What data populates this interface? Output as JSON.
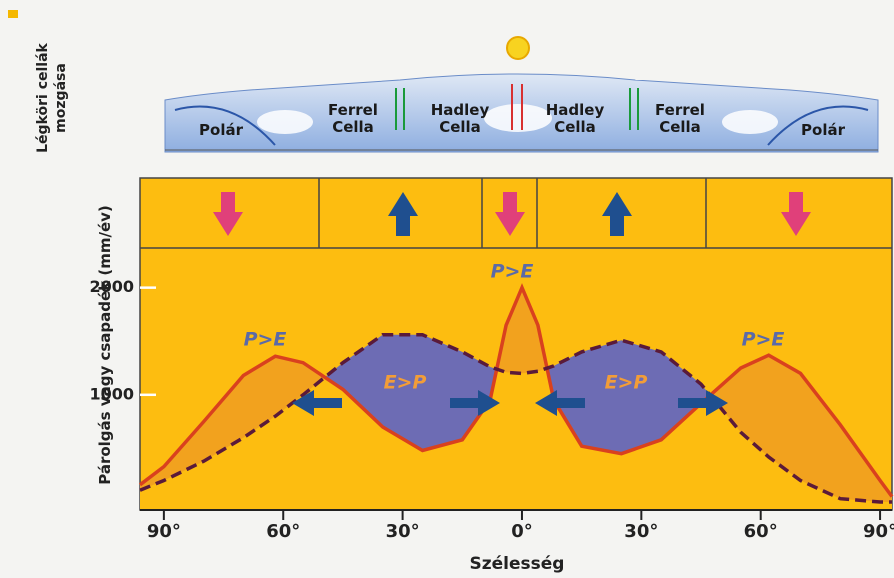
{
  "chart_data": {
    "type": "line",
    "ylabel": "Párolgás vagy csapadék (mm/év)",
    "xlabel": "Szélesség",
    "top_label": "Légköri cellák mozgása",
    "cells": [
      "Polár",
      "Ferrel Cella",
      "Hadley Cella",
      "Hadley Cella",
      "Ferrel Cella",
      "Polár"
    ],
    "annotations": [
      "P>E",
      "P>E",
      "P>E",
      "E>P",
      "E>P"
    ],
    "x": [
      -96,
      -90,
      -80,
      -70,
      -62,
      -55,
      -45,
      -35,
      -25,
      -15,
      -8,
      -4,
      0,
      4,
      8,
      15,
      25,
      35,
      45,
      55,
      62,
      70,
      80,
      90,
      93
    ],
    "series": [
      {
        "color": "#d9411e",
        "style": "solid",
        "values": [
          160,
          330,
          750,
          1180,
          1360,
          1300,
          1050,
          700,
          480,
          580,
          950,
          1650,
          2000,
          1650,
          950,
          520,
          450,
          580,
          920,
          1250,
          1370,
          1200,
          720,
          200,
          50
        ]
      },
      {
        "color": "#5a1a3a",
        "style": "dashed",
        "values": [
          110,
          200,
          380,
          600,
          800,
          1000,
          1300,
          1560,
          1560,
          1400,
          1260,
          1210,
          1200,
          1220,
          1270,
          1400,
          1510,
          1400,
          1100,
          650,
          420,
          200,
          30,
          0,
          0
        ]
      }
    ],
    "xlim": [
      -96,
      93
    ],
    "ylim": [
      -75,
      2370
    ],
    "xticks": [
      {
        "value": -90,
        "label": "90°"
      },
      {
        "value": -60,
        "label": "60°"
      },
      {
        "value": -30,
        "label": "30°"
      },
      {
        "value": 0,
        "label": "0°"
      },
      {
        "value": 30,
        "label": "30°"
      },
      {
        "value": 60,
        "label": "60°"
      },
      {
        "value": 90,
        "label": "90°"
      }
    ],
    "yticks": [
      1000,
      2000
    ],
    "fill_colors": {
      "p_gt_e": "#f2a21e",
      "e_gt_p": "#6d6cb4",
      "background": "#fdbd10"
    }
  }
}
